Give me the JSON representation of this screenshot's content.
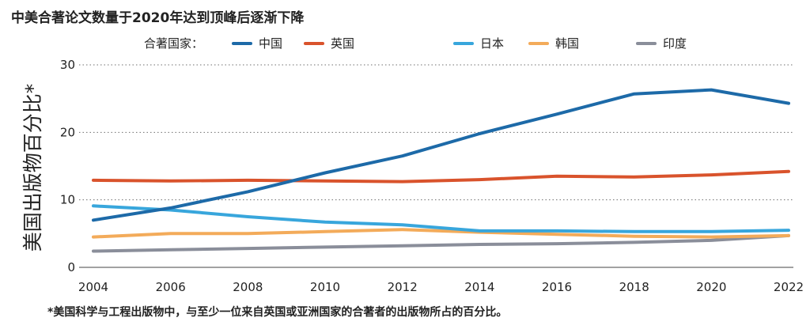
{
  "title": "中美合著论文数量于2020年达到顶峰后逐渐下降",
  "footnote": "*美国科学与工程出版物中，与至少一位来自英国或亚洲国家的合著者的出版物所占的百分比。",
  "chart_data": {
    "type": "line",
    "title": "中美合著论文数量于2020年达到顶峰后逐渐下降",
    "xlabel": "",
    "ylabel": "美国出版物百分比*",
    "legend_title": "合著国家：",
    "legend_position": "top",
    "grid": true,
    "x": [
      2004,
      2006,
      2008,
      2010,
      2012,
      2014,
      2016,
      2018,
      2020,
      2022
    ],
    "xticks": [
      "2004",
      "2006",
      "2008",
      "2010",
      "2012",
      "2014",
      "2016",
      "2018",
      "2020",
      "2022"
    ],
    "xlim": [
      2004,
      2022
    ],
    "yticks": [
      "0",
      "10",
      "20",
      "30"
    ],
    "ylim": [
      0,
      30
    ],
    "series": [
      {
        "name": "中国",
        "color": "#1d6aa8",
        "values": [
          7.0,
          8.8,
          11.2,
          14.0,
          16.5,
          19.8,
          22.7,
          25.7,
          26.3,
          24.3
        ]
      },
      {
        "name": "英国",
        "color": "#d9532c",
        "values": [
          12.9,
          12.8,
          12.9,
          12.8,
          12.7,
          13.0,
          13.5,
          13.4,
          13.7,
          14.2
        ]
      },
      {
        "name": "日本",
        "color": "#38a6dc",
        "values": [
          9.1,
          8.5,
          7.5,
          6.7,
          6.3,
          5.4,
          5.4,
          5.3,
          5.3,
          5.5
        ]
      },
      {
        "name": "韩国",
        "color": "#f3ab5a",
        "values": [
          4.5,
          5.0,
          5.0,
          5.3,
          5.6,
          5.2,
          4.9,
          4.6,
          4.5,
          4.7
        ]
      },
      {
        "name": "印度",
        "color": "#8a8e9a",
        "values": [
          2.4,
          2.6,
          2.8,
          3.0,
          3.2,
          3.4,
          3.5,
          3.7,
          4.0,
          4.7
        ]
      }
    ]
  }
}
